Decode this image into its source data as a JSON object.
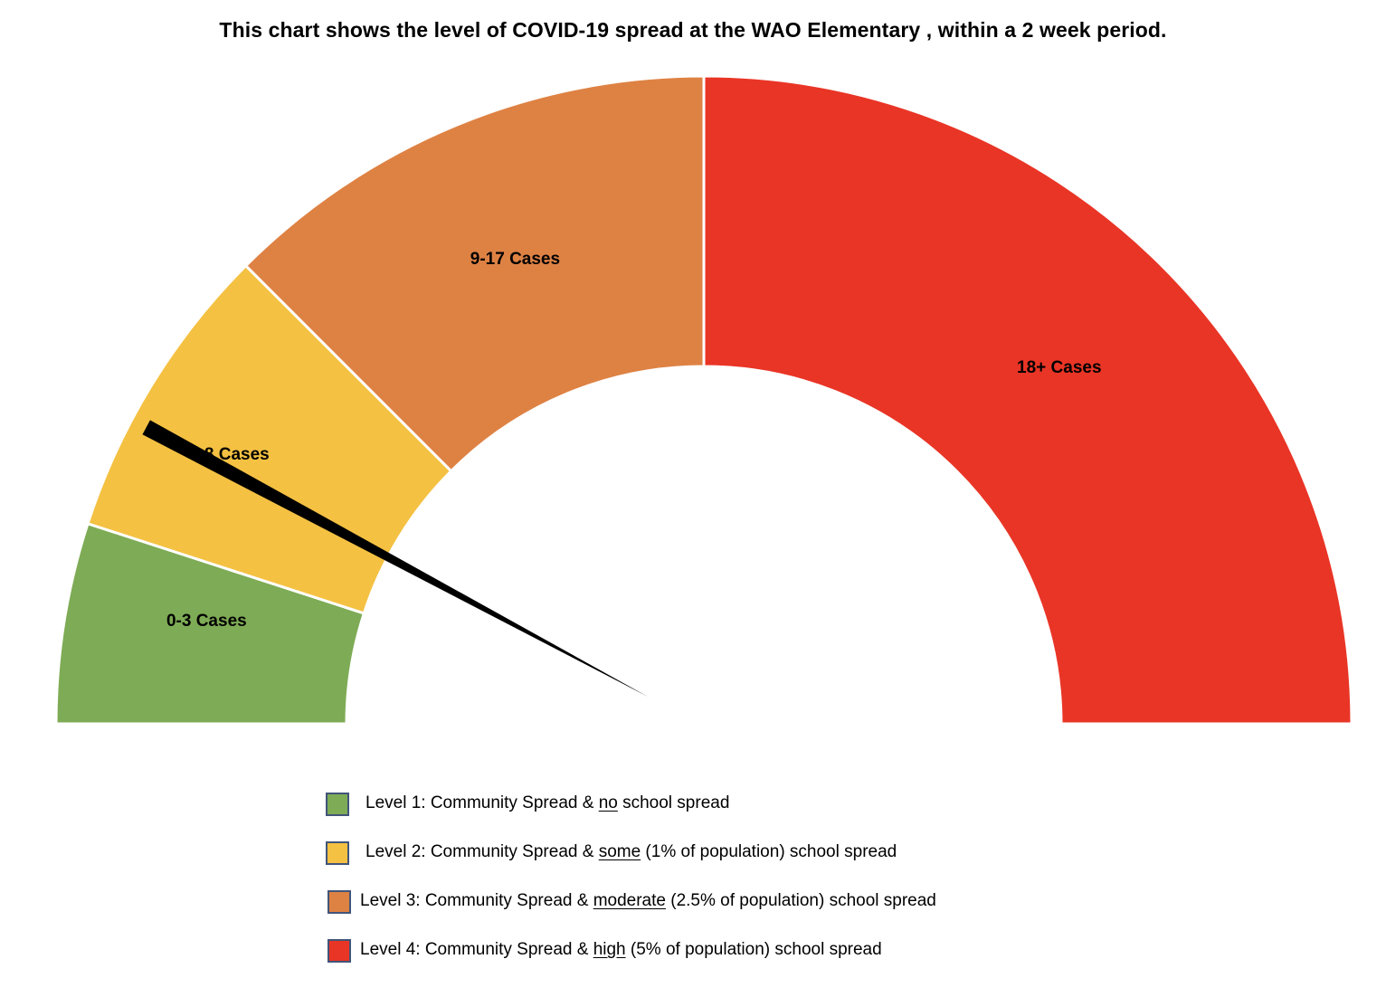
{
  "chart_data": {
    "type": "gauge",
    "title": "This chart shows the level of COVID-19 spread at the WAO Elementary , within a 2 week period.",
    "segments": [
      {
        "label": "0-3 Cases",
        "range": [
          0,
          3
        ],
        "color": "#7eab55"
      },
      {
        "label": "4-8 Cases",
        "range": [
          4,
          8
        ],
        "color": "#f4c142"
      },
      {
        "label": "9-17 Cases",
        "range": [
          9,
          17
        ],
        "color": "#de8244"
      },
      {
        "label": "18+ Cases",
        "range": [
          18,
          null
        ],
        "color": "#e93526"
      }
    ],
    "segment_angle_degrees": [
      18,
      27,
      45,
      90
    ],
    "needle": {
      "angle_degrees": 28,
      "color": "#000000"
    },
    "legend": [
      {
        "prefix": "Level 1: Community Spread & ",
        "emphasis": "no",
        "suffix": " school spread",
        "color": "#7eab55"
      },
      {
        "prefix": "Level 2: Community Spread & ",
        "emphasis": "some",
        "suffix": " (1% of population) school spread",
        "color": "#f4c142"
      },
      {
        "prefix": "Level 3: Community Spread & ",
        "emphasis": "moderate",
        "suffix": " (2.5% of population) school spread",
        "color": "#de8244"
      },
      {
        "prefix": "Level 4: Community Spread & ",
        "emphasis": "high",
        "suffix": " (5% of population) school spread",
        "color": "#e93526"
      }
    ]
  }
}
